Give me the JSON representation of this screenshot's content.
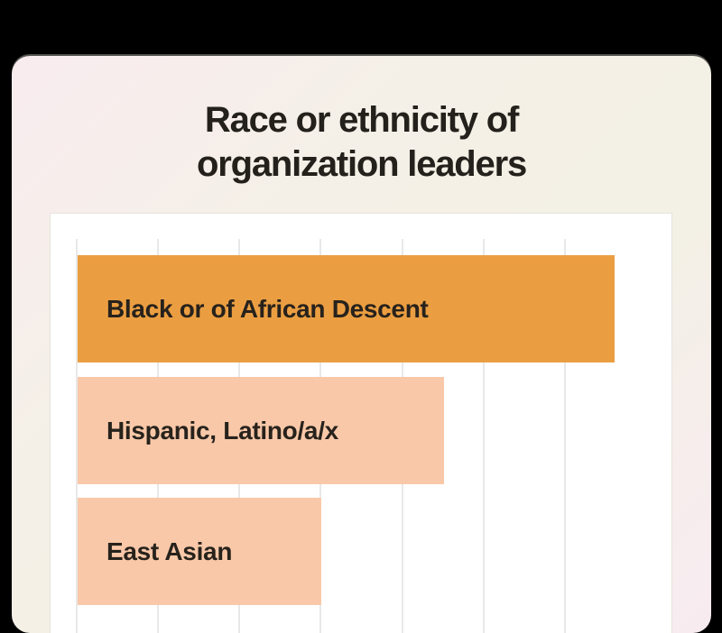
{
  "window": {
    "background": "#000000"
  },
  "card": {
    "title_lines": [
      "Race or ethnicity of",
      "organization leaders"
    ],
    "title_color": "#24201b",
    "background_colors": {
      "top_left": "#f9ecef",
      "center": "#f3f0e5",
      "bottom_right": "#f8ebf1"
    }
  },
  "chart_data": {
    "type": "bar",
    "orientation": "horizontal",
    "title": "Race or ethnicity of organization leaders",
    "categories": [
      "Black or of African Descent",
      "Hispanic, Latino/a/x",
      "East Asian"
    ],
    "values": [
      66,
      45,
      30
    ],
    "value_axis": {
      "min": 0,
      "visible_max": 76,
      "gridline_step": 10,
      "gridline_count": 7,
      "tick_labels_visible": false,
      "gridline_color": "#e8e8e8"
    },
    "series_colors": [
      "#eb9e41",
      "#f9c8a8",
      "#f9c8a8"
    ],
    "label_color": "#27221c",
    "plot_background": "#ffffff",
    "legend": "none",
    "cropped_at_bottom": true
  }
}
